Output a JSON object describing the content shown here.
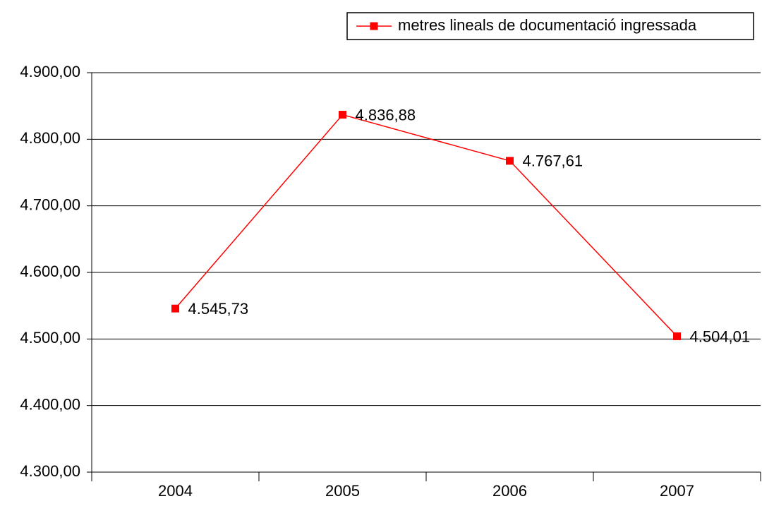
{
  "chart_data": {
    "type": "line",
    "categories": [
      "2004",
      "2005",
      "2006",
      "2007"
    ],
    "series": [
      {
        "name": "metres lineals de documentació ingressada",
        "color": "#ff0000",
        "values": [
          4545.73,
          4836.88,
          4767.61,
          4504.01
        ],
        "value_labels": [
          "4.545,73",
          "4.836,88",
          "4.767,61",
          "4.504,01"
        ]
      }
    ],
    "ylim": [
      4300,
      4900
    ],
    "yticks": [
      {
        "value": 4300,
        "label": "4.300,00"
      },
      {
        "value": 4400,
        "label": "4.400,00"
      },
      {
        "value": 4500,
        "label": "4.500,00"
      },
      {
        "value": 4600,
        "label": "4.600,00"
      },
      {
        "value": 4700,
        "label": "4.700,00"
      },
      {
        "value": 4800,
        "label": "4.800,00"
      },
      {
        "value": 4900,
        "label": "4.900,00"
      }
    ],
    "grid": true,
    "legend": "top-right"
  }
}
